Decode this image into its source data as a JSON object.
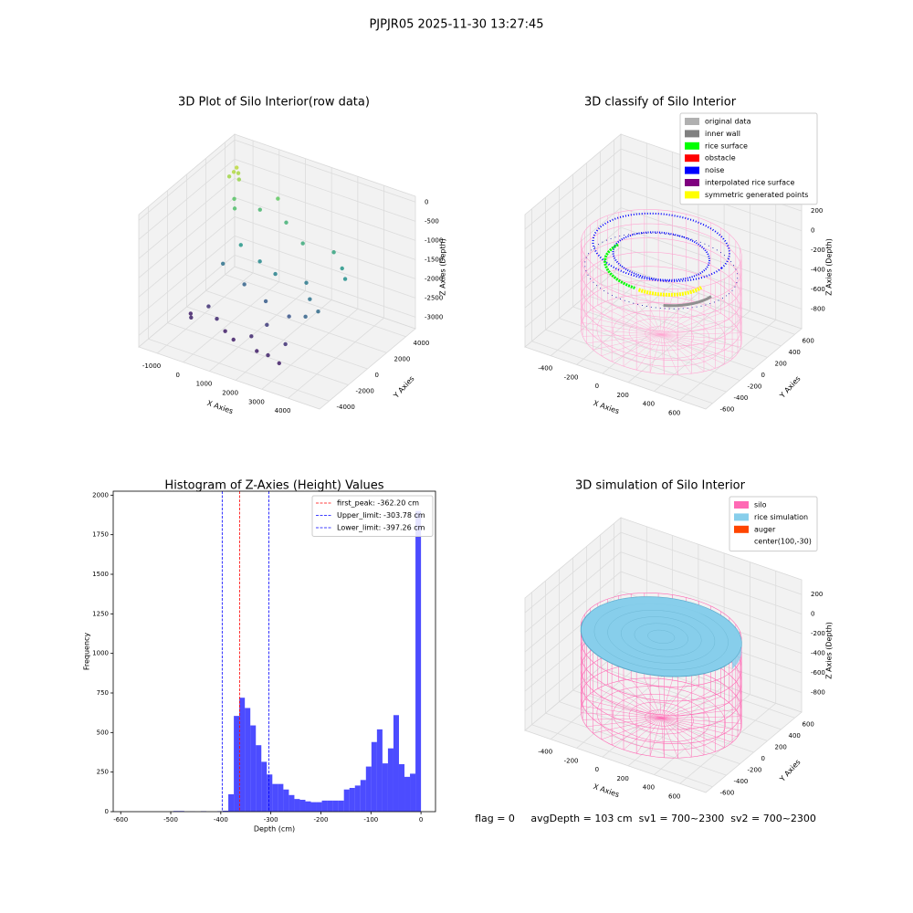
{
  "title": "PJPJR05 2025-11-30 13:27:45",
  "footer": "flag = 0     avgDepth = 103 cm  sv1 = 700~2300  sv2 = 700~2300",
  "chart_data": [
    {
      "type": "scatter3d",
      "title": "3D Plot of Silo Interior(row data)",
      "xlabel": "X Axies",
      "ylabel": "Y Axies",
      "zlabel": "Z Axies (Depth)",
      "xlim": [
        -1700,
        5200
      ],
      "ylim": [
        -5000,
        5000
      ],
      "zlim": [
        -3300,
        150
      ],
      "xticks": [
        -1000,
        0,
        1000,
        2000,
        3000,
        4000
      ],
      "yticks": [
        -4000,
        -2000,
        0,
        2000,
        4000
      ],
      "zticks": [
        0,
        -500,
        -1000,
        -1500,
        -2000,
        -2500,
        -3000
      ],
      "colormap": "viridis",
      "series": [
        {
          "x": [
            -1000,
            -900,
            -1100,
            -800,
            -1000,
            -800,
            -600,
            0,
            500,
            1000,
            2000,
            3000,
            3500,
            3800,
            0,
            800,
            1500,
            2500,
            3000,
            3500,
            -500,
            500,
            1500,
            2500,
            3200,
            -500,
            0,
            500,
            1000,
            1500,
            2000,
            2500,
            3000,
            -800,
            -1000,
            1800,
            2800
          ],
          "y": [
            3000,
            3200,
            2800,
            3000,
            3300,
            2500,
            2000,
            3000,
            3500,
            3000,
            2000,
            2500,
            2000,
            1500,
            1000,
            800,
            500,
            1000,
            0,
            -500,
            500,
            0,
            -500,
            -800,
            -1000,
            -1000,
            -1500,
            -2000,
            -2500,
            -2000,
            -2800,
            -3000,
            -3200,
            -2000,
            -1500,
            -1200,
            -2000
          ],
          "z": [
            -250,
            -300,
            -350,
            -400,
            -200,
            -800,
            -900,
            -1000,
            -700,
            -1100,
            -1200,
            -1300,
            -1500,
            -1600,
            -1500,
            -1700,
            -1800,
            -1900,
            -2000,
            -2100,
            -2000,
            -2200,
            -2300,
            -2400,
            -2200,
            -2800,
            -2900,
            -3000,
            -3000,
            -2900,
            -3000,
            -2950,
            -3000,
            -2950,
            -3000,
            -2700,
            -2800
          ]
        }
      ]
    },
    {
      "type": "silo3d",
      "title": "3D classify of Silo Interior",
      "xlabel": "X Axies",
      "ylabel": "Y Axies",
      "zlabel": "Z Axies (Depth)",
      "xlim": [
        -600,
        800
      ],
      "ylim": [
        -700,
        700
      ],
      "zlim": [
        -1000,
        350
      ],
      "xticks": [
        -400,
        -200,
        0,
        200,
        400,
        600
      ],
      "yticks": [
        -600,
        -400,
        -200,
        0,
        200,
        400,
        600
      ],
      "zticks": [
        200,
        0,
        -200,
        -400,
        -600,
        -800
      ],
      "style": "classify",
      "legend": "upper right",
      "legend_entries": [
        {
          "name": "original data",
          "color": "#b0b0b0"
        },
        {
          "name": "inner wall",
          "color": "#808080"
        },
        {
          "name": "rice surface",
          "color": "#00ff00"
        },
        {
          "name": "obstacle",
          "color": "#ff0000"
        },
        {
          "name": "noise",
          "color": "#0000ff"
        },
        {
          "name": "interpolated rice surface",
          "color": "#800080"
        },
        {
          "name": "symmetric generated points",
          "color": "#ffff00"
        }
      ]
    },
    {
      "type": "histogram",
      "title": "Histogram of Z-Axies (Height) Values",
      "xlabel": "Depth (cm)",
      "ylabel": "Frequency",
      "color": "#0000ff",
      "alpha": 0.7,
      "bins": [
        -605,
        -594,
        -583,
        -572,
        -561,
        -550,
        -539,
        -528,
        -517,
        -506,
        -495,
        -484,
        -473,
        -462,
        -451,
        -440,
        -429,
        -418,
        -407,
        -396,
        -385,
        -374,
        -363,
        -352,
        -341,
        -330,
        -319,
        -308,
        -297,
        -286,
        -275,
        -264,
        -253,
        -242,
        -231,
        -220,
        -209,
        -198,
        -187,
        -176,
        -165,
        -154,
        -143,
        -132,
        -121,
        -110,
        -99,
        -88,
        -77,
        -66,
        -55,
        -44,
        -33,
        -22,
        -11,
        0
      ],
      "values": [
        0,
        0,
        0,
        0,
        0,
        0,
        0,
        0,
        0,
        0,
        4,
        4,
        0,
        1,
        0,
        3,
        0,
        0,
        3,
        6,
        110,
        605,
        720,
        655,
        545,
        420,
        315,
        235,
        175,
        175,
        140,
        105,
        80,
        75,
        65,
        60,
        60,
        70,
        70,
        70,
        70,
        140,
        150,
        165,
        200,
        285,
        440,
        520,
        305,
        400,
        610,
        300,
        220,
        240,
        1900
      ],
      "xlim": [
        -615,
        29
      ],
      "ylim": [
        0,
        2025
      ],
      "xticks": [
        -600,
        -500,
        -400,
        -300,
        -200,
        -100,
        0
      ],
      "yticks": [
        0,
        250,
        500,
        750,
        1000,
        1250,
        1500,
        1750,
        2000
      ],
      "legend": "upper right",
      "vlines": [
        {
          "value": -362.2,
          "color": "#ff0000",
          "label": "first_peak: -362.20 cm"
        },
        {
          "value": -303.78,
          "color": "#0000ff",
          "label": "Upper_limit: -303.78 cm"
        },
        {
          "value": -397.26,
          "color": "#0000ff",
          "label": "Lower_limit: -397.26 cm"
        }
      ]
    },
    {
      "type": "silo3d",
      "title": "3D simulation of Silo Interior",
      "xlabel": "X Axies",
      "ylabel": "Y Axies",
      "zlabel": "Z Axies (Depth)",
      "xlim": [
        -600,
        800
      ],
      "ylim": [
        -700,
        700
      ],
      "zlim": [
        -1000,
        350
      ],
      "xticks": [
        -400,
        -200,
        0,
        200,
        400,
        600
      ],
      "yticks": [
        -600,
        -400,
        -200,
        0,
        200,
        400,
        600
      ],
      "zticks": [
        200,
        0,
        -200,
        -400,
        -600,
        -800
      ],
      "style": "simulation",
      "legend": "upper right",
      "legend_entries": [
        {
          "name": "silo",
          "color": "#ff69b4"
        },
        {
          "name": "rice simulation",
          "color": "#87ceeb"
        },
        {
          "name": "auger",
          "color": "#ff4500"
        },
        {
          "name": "center(100,-30)"
        }
      ]
    }
  ]
}
